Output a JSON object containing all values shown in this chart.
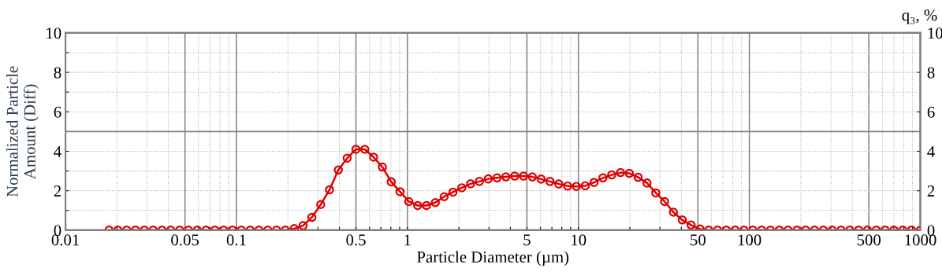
{
  "chart_data": {
    "type": "line",
    "xlabel": "Particle Diameter (µm)",
    "ylabel": "Normalized Particle\nAmount (Diff)",
    "y2label": "q₃, %",
    "log": "x",
    "grid": true,
    "marker": "circle",
    "line_style": "solid",
    "xlim": [
      0.01,
      1000
    ],
    "xticks": [
      0.01,
      {
        "value": 0.02,
        "label": null
      },
      {
        "value": 0.03,
        "label": null
      },
      {
        "value": 0.04,
        "label": null
      },
      0.05,
      {
        "value": 0.06,
        "label": null
      },
      {
        "value": 0.07,
        "label": null
      },
      {
        "value": 0.08,
        "label": null
      },
      {
        "value": 0.09,
        "label": null
      },
      0.1,
      {
        "value": 0.2,
        "label": null
      },
      {
        "value": 0.3,
        "label": null
      },
      {
        "value": 0.4,
        "label": null
      },
      0.5,
      {
        "value": 0.6,
        "label": null
      },
      {
        "value": 0.7,
        "label": null
      },
      {
        "value": 0.8,
        "label": null
      },
      {
        "value": 0.9,
        "label": null
      },
      1,
      {
        "value": 2,
        "label": null
      },
      {
        "value": 3,
        "label": null
      },
      {
        "value": 4,
        "label": null
      },
      5,
      {
        "value": 6,
        "label": null
      },
      {
        "value": 7,
        "label": null
      },
      {
        "value": 8,
        "label": null
      },
      {
        "value": 9,
        "label": null
      },
      10,
      {
        "value": 20,
        "label": null
      },
      {
        "value": 30,
        "label": null
      },
      {
        "value": 40,
        "label": null
      },
      50,
      {
        "value": 60,
        "label": null
      },
      {
        "value": 70,
        "label": null
      },
      {
        "value": 80,
        "label": null
      },
      {
        "value": 90,
        "label": null
      },
      100,
      {
        "value": 200,
        "label": null
      },
      {
        "value": 300,
        "label": null
      },
      {
        "value": 400,
        "label": null
      },
      500,
      {
        "value": 600,
        "label": null
      },
      {
        "value": 700,
        "label": null
      },
      {
        "value": 800,
        "label": null
      },
      {
        "value": 900,
        "label": null
      },
      1000
    ],
    "ylim": [
      0,
      10
    ],
    "yticks": [
      0,
      {
        "value": 1,
        "label": null
      },
      2,
      {
        "value": 3,
        "label": null
      },
      4,
      {
        "value": 5,
        "label": null
      },
      6,
      {
        "value": 7,
        "label": null
      },
      8,
      {
        "value": 9,
        "label": null
      },
      10
    ],
    "y2lim": [
      0,
      10
    ],
    "y2ticks": [
      0,
      2,
      4,
      6,
      8,
      10
    ],
    "ref_lines": [
      {
        "axis": "y",
        "value": 5,
        "color": "#808080",
        "line_style": "solid"
      }
    ],
    "x": [
      0.01798,
      0.02025,
      0.0228,
      0.02568,
      0.02892,
      0.03256,
      0.03667,
      0.04129,
      0.0465,
      0.05237,
      0.05897,
      0.06641,
      0.07479,
      0.08422,
      0.09484,
      0.1068,
      0.1203,
      0.1354,
      0.1525,
      0.1718,
      0.1934,
      0.2178,
      0.2453,
      0.2762,
      0.311,
      0.3503,
      0.3944,
      0.4442,
      0.5,
      0.5631,
      0.6341,
      0.714,
      0.8041,
      0.9055,
      1.0197,
      1.148,
      1.293,
      1.456,
      1.64,
      1.847,
      2.08,
      2.342,
      2.637,
      2.97,
      3.344,
      3.766,
      4.241,
      4.776,
      5.378,
      6.056,
      6.82,
      7.68,
      8.649,
      9.74,
      10.97,
      12.35,
      13.91,
      15.66,
      17.64,
      19.86,
      22.37,
      25.19,
      28.36,
      31.94,
      35.97,
      40.51,
      45.61,
      51.37,
      57.84,
      65.14,
      73.35,
      82.6,
      93.02,
      104.8,
      118.0,
      132.8,
      149.6,
      168.4,
      189.7,
      213.6,
      240.5,
      270.9,
      305.0,
      343.5,
      386.8,
      435.6,
      490.5,
      552.4,
      622.0,
      700.5,
      788.8,
      888.3,
      1000
    ],
    "series": [
      {
        "color": "#e00000",
        "values": [
          0,
          0,
          0,
          0,
          0,
          0,
          0,
          0,
          0,
          0,
          0,
          0,
          0,
          0,
          0,
          0,
          0,
          0,
          0,
          0,
          0,
          0.08,
          0.23,
          0.65,
          1.3,
          2.05,
          3.05,
          3.65,
          4.1,
          4.1,
          3.7,
          3.2,
          2.45,
          1.95,
          1.45,
          1.25,
          1.25,
          1.4,
          1.7,
          1.93,
          2.15,
          2.35,
          2.47,
          2.6,
          2.65,
          2.7,
          2.74,
          2.74,
          2.7,
          2.59,
          2.47,
          2.34,
          2.24,
          2.22,
          2.25,
          2.42,
          2.65,
          2.8,
          2.92,
          2.88,
          2.68,
          2.39,
          1.89,
          1.45,
          0.91,
          0.52,
          0.26,
          0.06,
          0,
          0,
          0,
          0,
          0,
          0,
          0,
          0,
          0,
          0,
          0,
          0,
          0,
          0,
          0,
          0,
          0,
          0,
          0,
          0,
          0,
          0,
          0,
          0,
          0
        ]
      }
    ]
  }
}
